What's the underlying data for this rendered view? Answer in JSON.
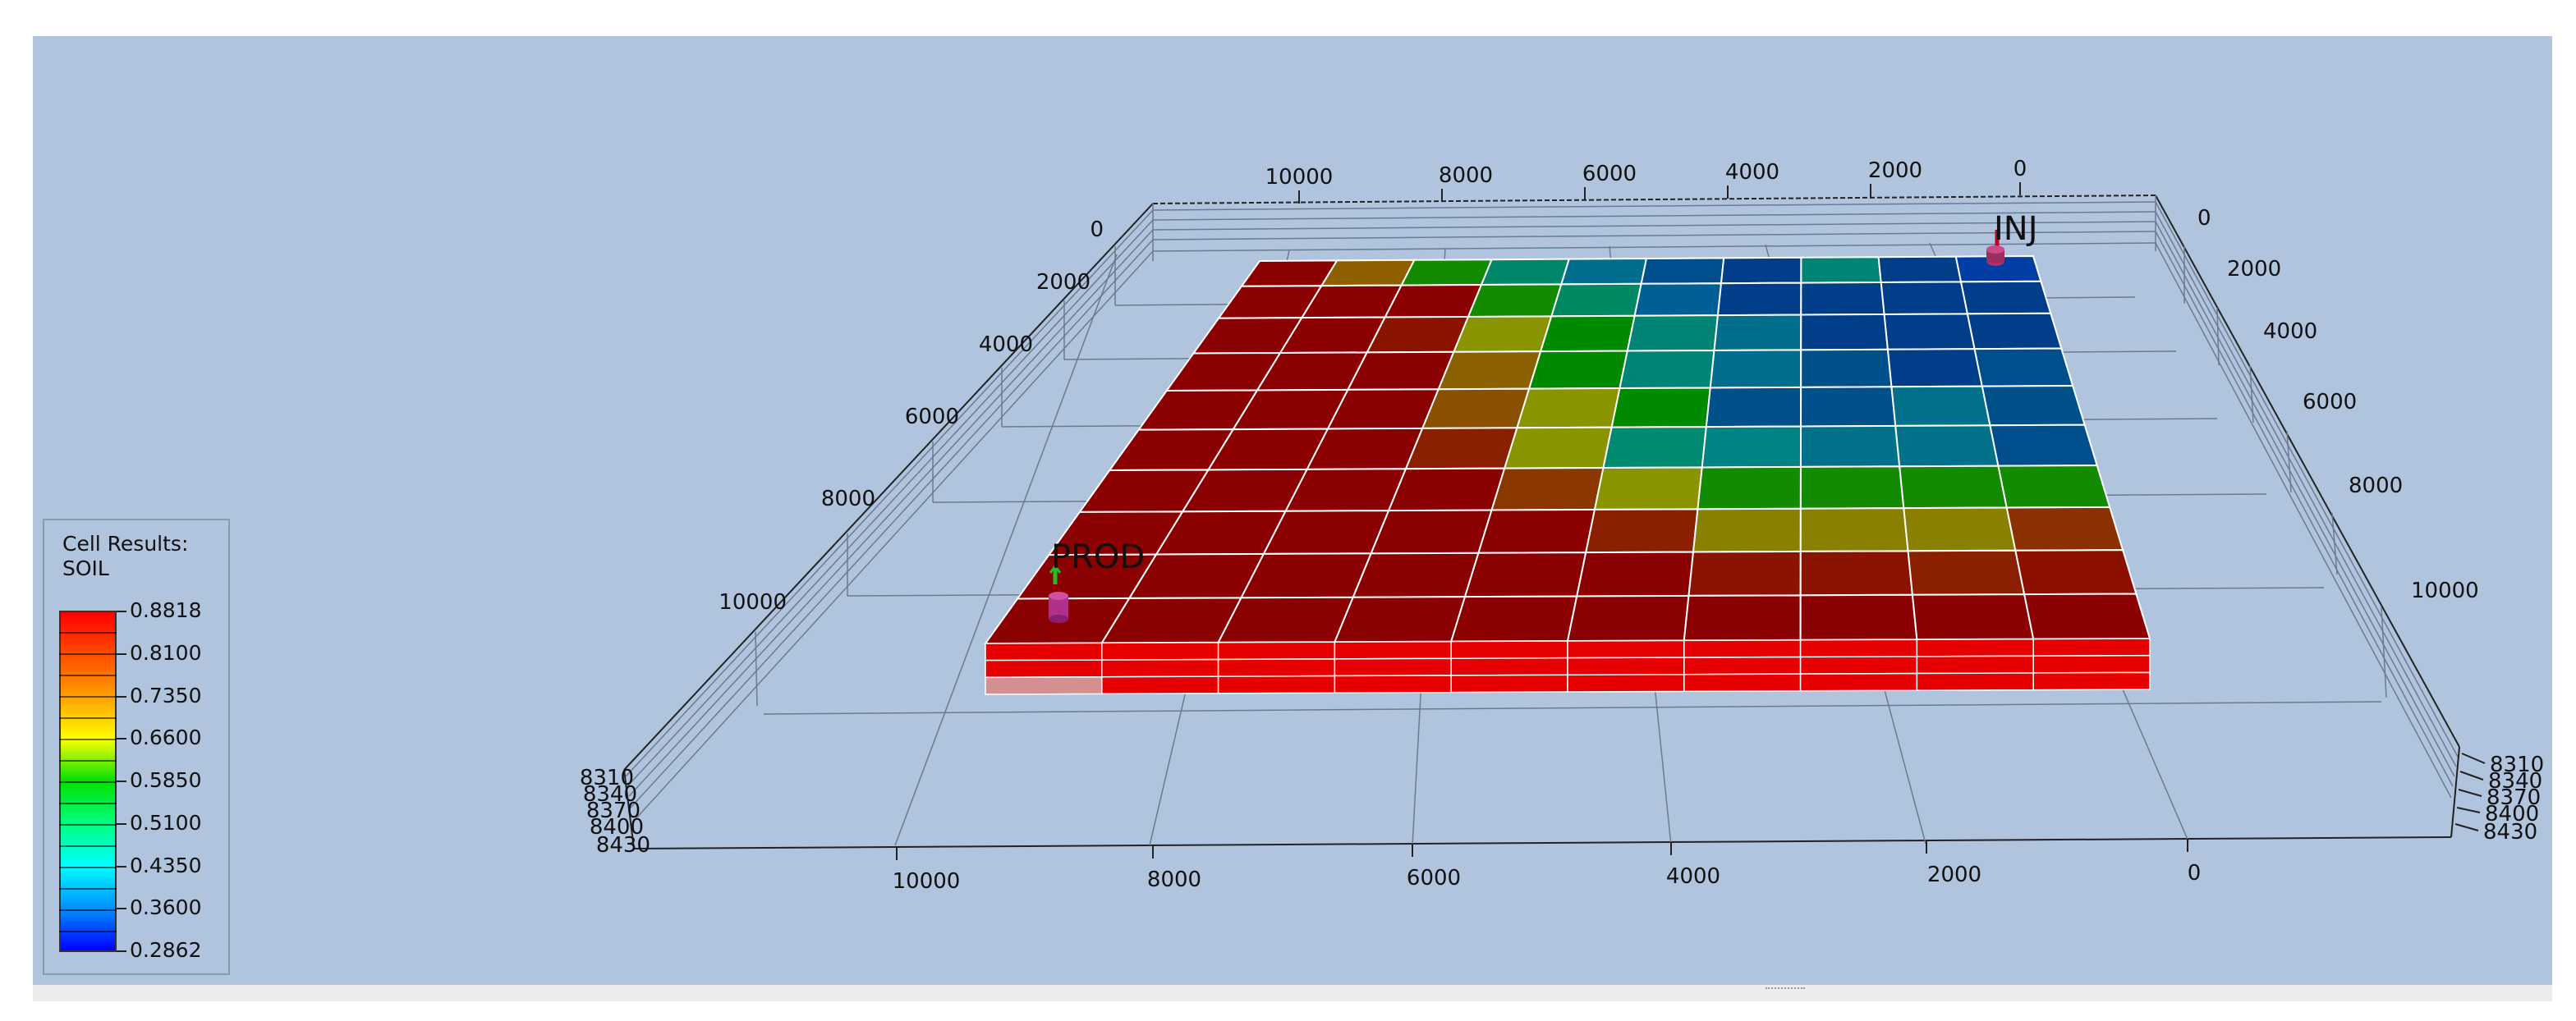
{
  "legend": {
    "title_line1": "Cell Results:",
    "title_line2": "SOIL",
    "ticks": [
      "0.8818",
      "0.8100",
      "0.7350",
      "0.6600",
      "0.5850",
      "0.5100",
      "0.4350",
      "0.3600",
      "0.2862"
    ],
    "colors": {
      "high": "#ff0000",
      "mid": "#00e000",
      "low": "#0000ff"
    }
  },
  "wells": {
    "injector": "INJ",
    "producer": "PROD"
  },
  "axes": {
    "top_x": [
      "10000",
      "8000",
      "6000",
      "4000",
      "2000",
      "0"
    ],
    "bottom_x": [
      "10000",
      "8000",
      "6000",
      "4000",
      "2000",
      "0"
    ],
    "left_y": [
      "0",
      "2000",
      "4000",
      "6000",
      "8000",
      "10000"
    ],
    "right_y": [
      "0",
      "2000",
      "4000",
      "6000",
      "8000",
      "10000"
    ],
    "depth_left": [
      "8310",
      "8340",
      "8370",
      "8400",
      "8430"
    ],
    "depth_right": [
      "8310",
      "8340",
      "8370",
      "8400",
      "8430"
    ]
  },
  "grid": {
    "rows": [
      [
        "#8b0000",
        "#8e6000",
        "#138a00",
        "#00876a",
        "#006e8c",
        "#004f8c",
        "#003e8a",
        "#008475",
        "#003e8a",
        "#003ea6"
      ],
      [
        "#8b0000",
        "#8b0000",
        "#8b0000",
        "#138a00",
        "#008865",
        "#006095",
        "#003e8a",
        "#003e8a",
        "#003e8a",
        "#003e8a"
      ],
      [
        "#8b0000",
        "#8b0000",
        "#8b1400",
        "#8a9300",
        "#008a00",
        "#008475",
        "#006e8c",
        "#003e8a",
        "#003e8a",
        "#003e8a"
      ],
      [
        "#8b0000",
        "#8b0000",
        "#8b0000",
        "#8b6000",
        "#008a00",
        "#008475",
        "#006e8c",
        "#00508c",
        "#003e8a",
        "#004f8c"
      ],
      [
        "#8b0000",
        "#8b0000",
        "#8b0000",
        "#8b4f00",
        "#8a9300",
        "#008a00",
        "#00508c",
        "#00508c",
        "#00708b",
        "#00508c"
      ],
      [
        "#8b0000",
        "#8b0000",
        "#8b0000",
        "#8b2000",
        "#8a9300",
        "#008a70",
        "#008384",
        "#00708b",
        "#00708b",
        "#004f8c"
      ],
      [
        "#8b0000",
        "#8b0000",
        "#8b0000",
        "#8b0000",
        "#8b3800",
        "#8a9300",
        "#138a00",
        "#138a00",
        "#138a00",
        "#138a00"
      ],
      [
        "#8b0000",
        "#8b0000",
        "#8b0000",
        "#8b0000",
        "#8b0000",
        "#8b2000",
        "#8a8000",
        "#8a8000",
        "#8a8000",
        "#8b3000"
      ],
      [
        "#8b0000",
        "#8b0000",
        "#8b0000",
        "#8b0000",
        "#8b0000",
        "#8b0000",
        "#8b1400",
        "#8b1400",
        "#8b2000",
        "#8b1000"
      ],
      [
        "#8b0000",
        "#8b0000",
        "#8b0000",
        "#8b0000",
        "#8b0000",
        "#8b0000",
        "#8b0000",
        "#8b0000",
        "#8b0000",
        "#8b0000"
      ]
    ]
  }
}
